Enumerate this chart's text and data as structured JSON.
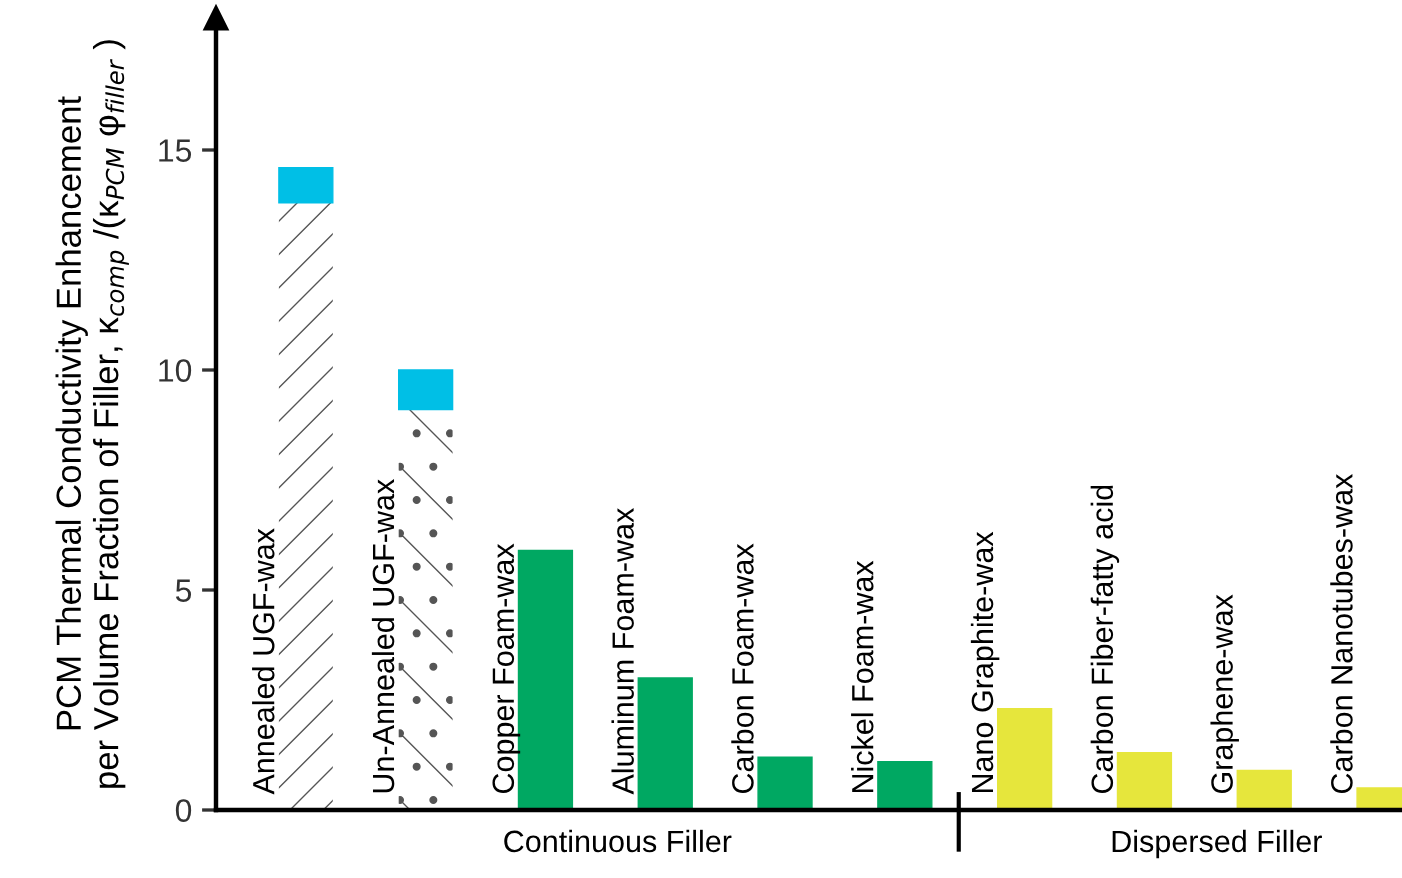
{
  "chart_data": {
    "type": "bar",
    "stacked": true,
    "ylabel": "PCM Thermal Conductivity Enhancement\nper Volume Fraction of Filler, κ$_{comp}$ /(κ$_{PCM}$ φ$_{filler}$ )",
    "categories": [
      "Annealed UGF-wax",
      "Un-Annealed UGF-wax",
      "Copper Foam-wax",
      "Aluminum Foam-wax",
      "Carbon Foam-wax",
      "Nickel Foam-wax",
      "Nano Graphite-wax",
      "Carbon Fiber-fatty acid",
      "Graphene-wax",
      "Carbon Nanotubes-wax"
    ],
    "series": [
      {
        "colors": [
          "#ffffff",
          "#ffffff",
          "#00a862",
          "#00a862",
          "#00a862",
          "#00a862",
          "#e6e63c",
          "#e6e63c",
          "#e6e63c",
          "#e6e63c"
        ],
        "values": [
          13.8,
          9.1,
          5.9,
          3.0,
          1.2,
          1.1,
          2.3,
          1.3,
          0.9,
          0.5
        ]
      },
      {
        "color": "#00bfe6",
        "values": [
          0.8,
          0.9,
          null,
          null,
          null,
          null,
          null,
          null,
          null,
          null
        ]
      }
    ],
    "annotations": [
      "Continuous Filler",
      "Dispersed Filler"
    ],
    "ylim": [
      0,
      18
    ],
    "yticks": [
      0,
      5,
      10,
      15
    ],
    "grid": false,
    "legend": false
  }
}
